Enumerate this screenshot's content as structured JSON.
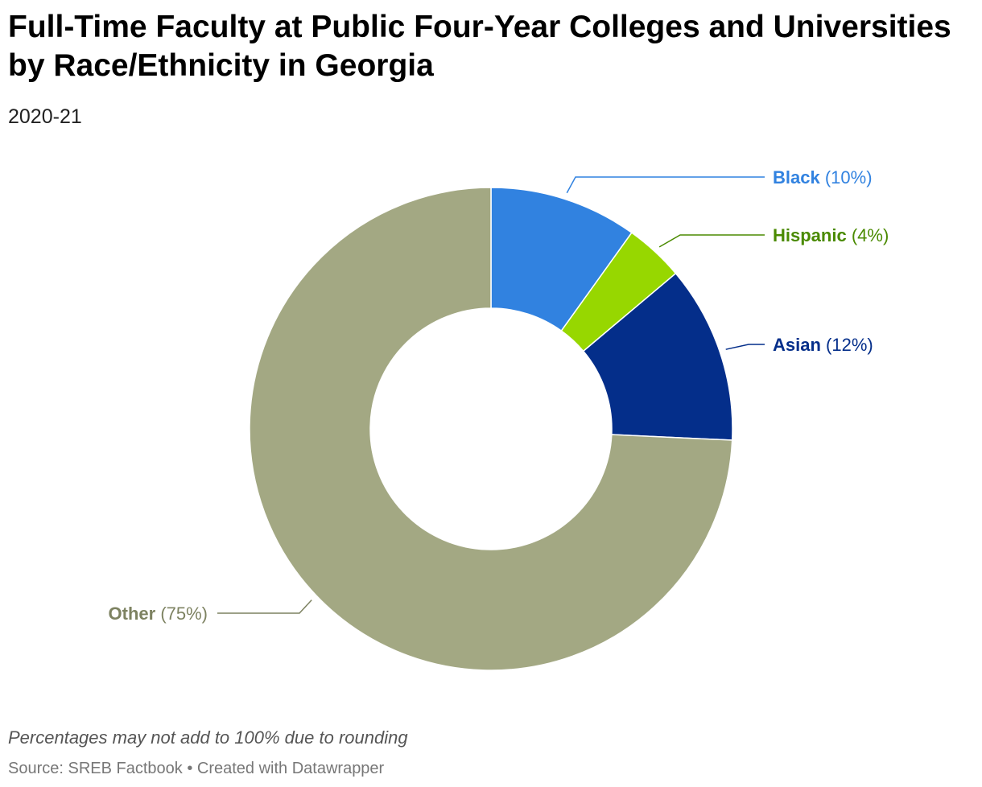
{
  "header": {
    "title": "Full-Time Faculty at Public Four-Year Colleges and Universities by Race/Ethnicity in Georgia",
    "subtitle": "2020-21"
  },
  "footer": {
    "note": "Percentages may not add to 100% due to rounding",
    "source": "Source: SREB Factbook • Created with Datawrapper"
  },
  "chart_data": {
    "type": "pie",
    "subtype": "donut",
    "title": "Full-Time Faculty at Public Four-Year Colleges and Universities by Race/Ethnicity in Georgia",
    "subtitle": "2020-21",
    "slices": [
      {
        "label": "Black",
        "value": 10,
        "value_label": "(10%)",
        "color": "#3182e0",
        "label_color": "#3182e0"
      },
      {
        "label": "Hispanic",
        "value": 4,
        "value_label": "(4%)",
        "color": "#97d700",
        "label_color": "#4a8a00"
      },
      {
        "label": "Asian",
        "value": 12,
        "value_label": "(12%)",
        "color": "#042e8a",
        "label_color": "#042e8a"
      },
      {
        "label": "Other",
        "value": 75,
        "value_label": "(75%)",
        "color": "#a3a883",
        "label_color": "#7d8261"
      }
    ]
  }
}
